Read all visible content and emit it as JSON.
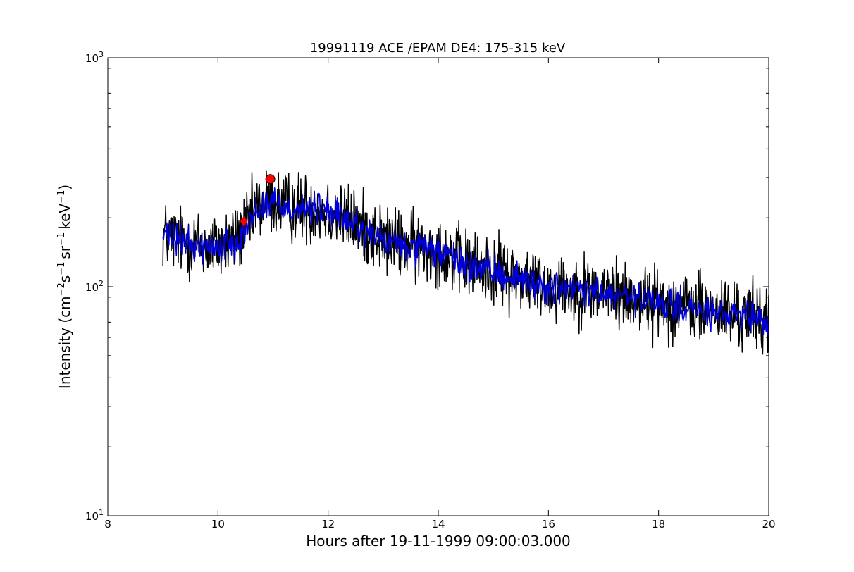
{
  "chart_data": {
    "type": "line",
    "title": "19991119 ACE /EPAM DE4: 175-315 keV",
    "xlabel": "Hours after 19-11-1999 09:00:03.000",
    "ylabel": {
      "prefix": "Intensity (cm",
      "sup1": "−2",
      "part2": "s",
      "sup2": "−1",
      "part3": "sr",
      "sup3": "−1",
      "part4": "keV",
      "sup4": "−1",
      "suffix": ")"
    },
    "xlim": [
      8,
      20
    ],
    "ylim": [
      10,
      1000
    ],
    "yscale": "log",
    "grid": false,
    "x_ticks": [
      8,
      10,
      12,
      14,
      16,
      18,
      20
    ],
    "x_tick_labels": [
      "8",
      "10",
      "12",
      "14",
      "16",
      "18",
      "20"
    ],
    "y_ticks": [
      {
        "value": 10,
        "base": "10",
        "exp": "1"
      },
      {
        "value": 100,
        "base": "10",
        "exp": "2"
      },
      {
        "value": 1000,
        "base": "10",
        "exp": "3"
      }
    ],
    "series": [
      {
        "color": "#000000",
        "style": "raw",
        "trend": [
          [
            9.0,
            170
          ],
          [
            9.3,
            160
          ],
          [
            9.7,
            150
          ],
          [
            10.0,
            150
          ],
          [
            10.3,
            160
          ],
          [
            10.5,
            180
          ],
          [
            10.7,
            220
          ],
          [
            10.95,
            240
          ],
          [
            11.2,
            225
          ],
          [
            11.5,
            222
          ],
          [
            12.0,
            215
          ],
          [
            12.5,
            190
          ],
          [
            13.0,
            160
          ],
          [
            13.5,
            150
          ],
          [
            14.0,
            145
          ],
          [
            14.5,
            125
          ],
          [
            15.0,
            118
          ],
          [
            15.5,
            110
          ],
          [
            16.0,
            100
          ],
          [
            16.5,
            98
          ],
          [
            17.0,
            95
          ],
          [
            17.5,
            90
          ],
          [
            18.0,
            85
          ],
          [
            18.5,
            82
          ],
          [
            19.0,
            78
          ],
          [
            19.5,
            75
          ],
          [
            20.0,
            72
          ]
        ],
        "noise_dex": 0.075
      },
      {
        "color": "#0000dd",
        "style": "smoothed",
        "trend": [
          [
            9.0,
            168
          ],
          [
            9.3,
            158
          ],
          [
            9.7,
            150
          ],
          [
            10.0,
            150
          ],
          [
            10.3,
            158
          ],
          [
            10.5,
            178
          ],
          [
            10.7,
            215
          ],
          [
            10.95,
            238
          ],
          [
            11.2,
            222
          ],
          [
            11.5,
            220
          ],
          [
            12.0,
            213
          ],
          [
            12.5,
            188
          ],
          [
            13.0,
            158
          ],
          [
            13.5,
            148
          ],
          [
            14.0,
            143
          ],
          [
            14.5,
            124
          ],
          [
            15.0,
            116
          ],
          [
            15.5,
            108
          ],
          [
            16.0,
            99
          ],
          [
            16.5,
            97
          ],
          [
            17.0,
            93
          ],
          [
            17.5,
            89
          ],
          [
            18.0,
            84
          ],
          [
            18.5,
            81
          ],
          [
            19.0,
            76
          ],
          [
            19.5,
            73
          ],
          [
            20.0,
            70
          ]
        ],
        "noise_dex": 0.035
      }
    ],
    "markers": [
      {
        "shape": "diamond",
        "x": 10.47,
        "y": 193,
        "color": "#ff0000"
      },
      {
        "shape": "circle",
        "x": 10.95,
        "y": 295,
        "color": "#ff0000"
      }
    ]
  }
}
